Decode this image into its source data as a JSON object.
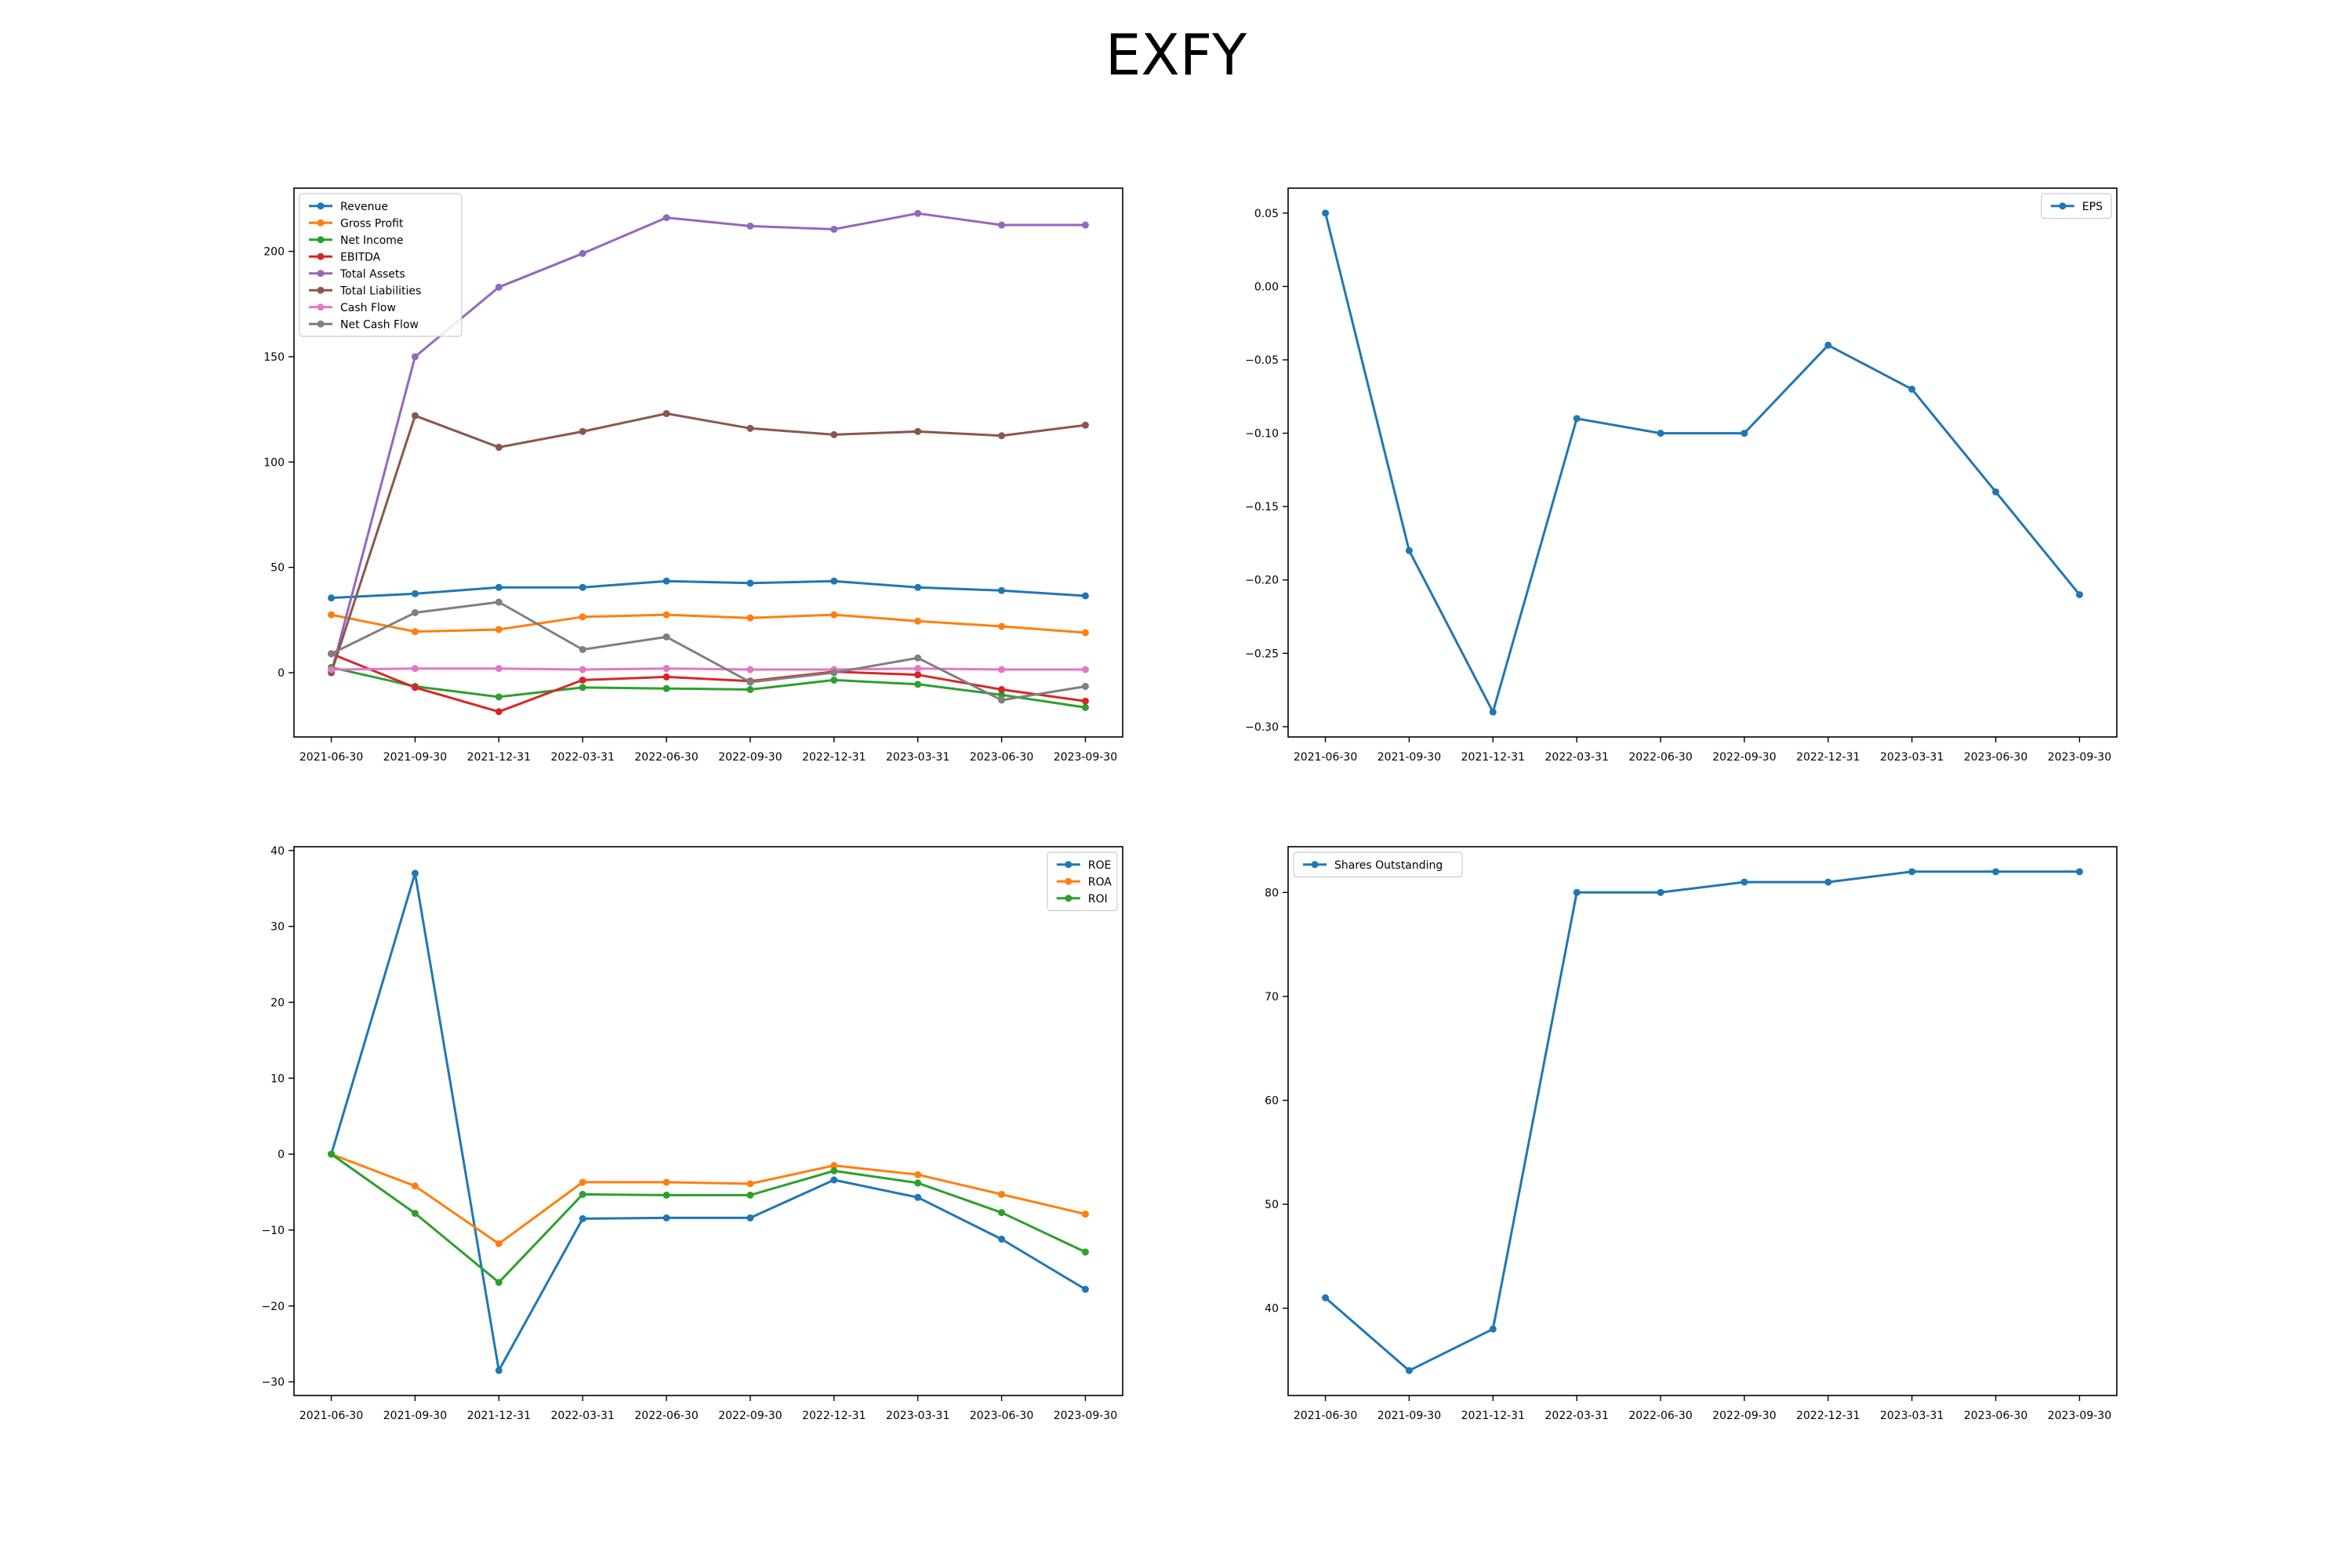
{
  "figure_title": "EXFY",
  "chart_data": [
    {
      "type": "line",
      "title": "",
      "xlabel": "",
      "ylabel": "",
      "categories": [
        "2021-06-30",
        "2021-09-30",
        "2021-12-31",
        "2022-03-31",
        "2022-06-30",
        "2022-09-30",
        "2022-12-31",
        "2023-03-31",
        "2023-06-30",
        "2023-09-30"
      ],
      "ylim": [
        -30.5,
        230
      ],
      "yticks": [
        0,
        50,
        100,
        150,
        200
      ],
      "ytick_labels": [
        "0",
        "50",
        "100",
        "150",
        "200"
      ],
      "legend": "upper left",
      "series": [
        {
          "name": "Revenue",
          "color": "#1f77b4",
          "values": [
            35.5,
            37.5,
            40.5,
            40.5,
            43.5,
            42.5,
            43.5,
            40.5,
            39,
            36.5
          ]
        },
        {
          "name": "Gross Profit",
          "color": "#ff7f0e",
          "values": [
            27.5,
            19.5,
            20.5,
            26.5,
            27.5,
            26,
            27.5,
            24.5,
            22,
            19
          ]
        },
        {
          "name": "Net Income",
          "color": "#2ca02c",
          "values": [
            2.5,
            -6.5,
            -11.5,
            -7,
            -7.5,
            -8,
            -3.5,
            -5.5,
            -10.5,
            -16.5
          ]
        },
        {
          "name": "EBITDA",
          "color": "#d62728",
          "values": [
            9,
            -7,
            -18.5,
            -3.5,
            -2,
            -4,
            0.5,
            -1,
            -8,
            -13.5
          ]
        },
        {
          "name": "Total Assets",
          "color": "#9467bd",
          "values": [
            0,
            150,
            183,
            199,
            216,
            212,
            210.5,
            218,
            212.5,
            212.5
          ]
        },
        {
          "name": "Total Liabilities",
          "color": "#8c564b",
          "values": [
            0,
            122,
            107,
            114.5,
            123,
            116,
            113,
            114.5,
            112.5,
            117.5
          ]
        },
        {
          "name": "Cash Flow",
          "color": "#e377c2",
          "values": [
            1.5,
            2,
            2,
            1.5,
            2,
            1.5,
            1.5,
            2,
            1.5,
            1.5
          ]
        },
        {
          "name": "Net Cash Flow",
          "color": "#7f7f7f",
          "values": [
            9,
            28.5,
            33.5,
            11,
            17,
            -4.5,
            0,
            7,
            -13,
            -6.5
          ]
        }
      ]
    },
    {
      "type": "line",
      "title": "",
      "xlabel": "",
      "ylabel": "",
      "categories": [
        "2021-06-30",
        "2021-09-30",
        "2021-12-31",
        "2022-03-31",
        "2022-06-30",
        "2022-09-30",
        "2022-12-31",
        "2023-03-31",
        "2023-06-30",
        "2023-09-30"
      ],
      "ylim": [
        -0.307,
        0.067
      ],
      "yticks": [
        0.05,
        0.0,
        -0.05,
        -0.1,
        -0.15,
        -0.2,
        -0.25,
        -0.3
      ],
      "ytick_labels": [
        "0.05",
        "0.00",
        "−0.05",
        "−0.10",
        "−0.15",
        "−0.20",
        "−0.25",
        "−0.30"
      ],
      "legend": "upper right",
      "series": [
        {
          "name": "EPS",
          "color": "#1f77b4",
          "values": [
            0.05,
            -0.18,
            -0.29,
            -0.09,
            -0.1,
            -0.1,
            -0.04,
            -0.07,
            -0.14,
            -0.21
          ]
        }
      ]
    },
    {
      "type": "line",
      "title": "",
      "xlabel": "",
      "ylabel": "",
      "categories": [
        "2021-06-30",
        "2021-09-30",
        "2021-12-31",
        "2022-03-31",
        "2022-06-30",
        "2022-09-30",
        "2022-12-31",
        "2023-03-31",
        "2023-06-30",
        "2023-09-30"
      ],
      "ylim": [
        -31.8,
        40.5
      ],
      "yticks": [
        40,
        30,
        20,
        10,
        0,
        -10,
        -20,
        -30
      ],
      "ytick_labels": [
        "40",
        "30",
        "20",
        "10",
        "0",
        "−10",
        "−20",
        "−30"
      ],
      "legend": "upper right",
      "series": [
        {
          "name": "ROE",
          "color": "#1f77b4",
          "values": [
            0,
            37,
            -28.5,
            -8.5,
            -8.4,
            -8.4,
            -3.4,
            -5.7,
            -11.2,
            -17.8
          ]
        },
        {
          "name": "ROA",
          "color": "#ff7f0e",
          "values": [
            0,
            -4.2,
            -11.8,
            -3.7,
            -3.7,
            -3.9,
            -1.5,
            -2.7,
            -5.3,
            -7.9
          ]
        },
        {
          "name": "ROI",
          "color": "#2ca02c",
          "values": [
            0,
            -7.8,
            -16.9,
            -5.3,
            -5.4,
            -5.4,
            -2.2,
            -3.8,
            -7.7,
            -12.9
          ]
        }
      ]
    },
    {
      "type": "line",
      "title": "",
      "xlabel": "",
      "ylabel": "",
      "categories": [
        "2021-06-30",
        "2021-09-30",
        "2021-12-31",
        "2022-03-31",
        "2022-06-30",
        "2022-09-30",
        "2022-12-31",
        "2023-03-31",
        "2023-06-30",
        "2023-09-30"
      ],
      "ylim": [
        31.6,
        84.4
      ],
      "yticks": [
        40,
        50,
        60,
        70,
        80
      ],
      "ytick_labels": [
        "40",
        "50",
        "60",
        "70",
        "80"
      ],
      "legend": "upper left",
      "series": [
        {
          "name": "Shares Outstanding",
          "color": "#1f77b4",
          "values": [
            41,
            34,
            38,
            80,
            80,
            81,
            81,
            82,
            82,
            82
          ]
        }
      ]
    }
  ]
}
